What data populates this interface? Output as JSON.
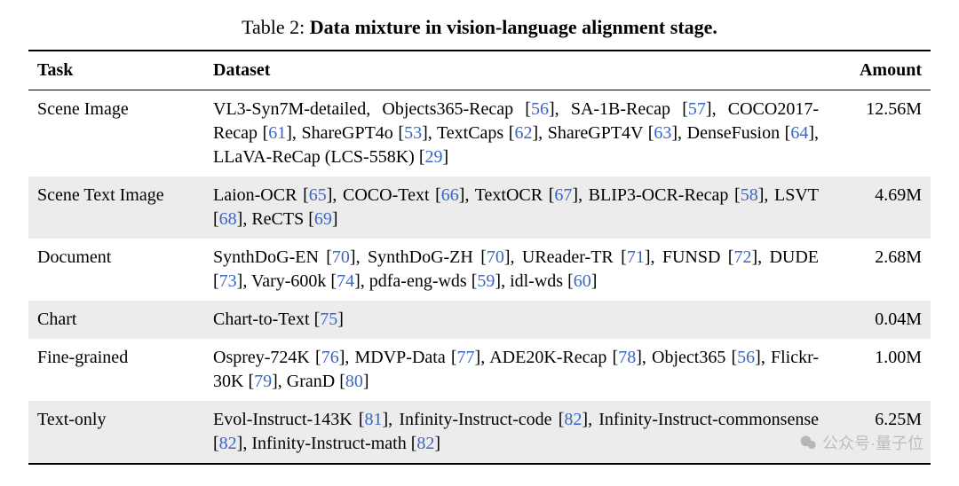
{
  "caption_prefix": "Table 2: ",
  "caption_title": "Data mixture in vision-language alignment stage.",
  "columns": [
    "Task",
    "Dataset",
    "Amount"
  ],
  "cite_color": "#3a66c4",
  "shade_color": "#ececec",
  "rows": [
    {
      "task": "Scene Image",
      "amount": "12.56M",
      "shaded": false,
      "segments": [
        {
          "t": "VL3-Syn7M-detailed, Objects365-Recap "
        },
        {
          "t": "[",
          "k": "br"
        },
        {
          "t": "56",
          "k": "cite"
        },
        {
          "t": "]",
          "k": "br"
        },
        {
          "t": ", SA-1B-Recap "
        },
        {
          "t": "[",
          "k": "br"
        },
        {
          "t": "57",
          "k": "cite"
        },
        {
          "t": "]",
          "k": "br"
        },
        {
          "t": ", COCO2017-Recap "
        },
        {
          "t": "[",
          "k": "br"
        },
        {
          "t": "61",
          "k": "cite"
        },
        {
          "t": "]",
          "k": "br"
        },
        {
          "t": ", ShareGPT4o "
        },
        {
          "t": "[",
          "k": "br"
        },
        {
          "t": "53",
          "k": "cite"
        },
        {
          "t": "]",
          "k": "br"
        },
        {
          "t": ", TextCaps "
        },
        {
          "t": "[",
          "k": "br"
        },
        {
          "t": "62",
          "k": "cite"
        },
        {
          "t": "]",
          "k": "br"
        },
        {
          "t": ", ShareGPT4V "
        },
        {
          "t": "[",
          "k": "br"
        },
        {
          "t": "63",
          "k": "cite"
        },
        {
          "t": "]",
          "k": "br"
        },
        {
          "t": ", DenseFusion "
        },
        {
          "t": "[",
          "k": "br"
        },
        {
          "t": "64",
          "k": "cite"
        },
        {
          "t": "]",
          "k": "br"
        },
        {
          "t": ", LLaVA-ReCap (LCS-558K) "
        },
        {
          "t": "[",
          "k": "br"
        },
        {
          "t": "29",
          "k": "cite"
        },
        {
          "t": "]",
          "k": "br"
        }
      ]
    },
    {
      "task": "Scene Text Image",
      "amount": "4.69M",
      "shaded": true,
      "segments": [
        {
          "t": "Laion-OCR "
        },
        {
          "t": "[",
          "k": "br"
        },
        {
          "t": "65",
          "k": "cite"
        },
        {
          "t": "]",
          "k": "br"
        },
        {
          "t": ", COCO-Text "
        },
        {
          "t": "[",
          "k": "br"
        },
        {
          "t": "66",
          "k": "cite"
        },
        {
          "t": "]",
          "k": "br"
        },
        {
          "t": ", TextOCR "
        },
        {
          "t": "[",
          "k": "br"
        },
        {
          "t": "67",
          "k": "cite"
        },
        {
          "t": "]",
          "k": "br"
        },
        {
          "t": ", BLIP3-OCR-Recap "
        },
        {
          "t": "[",
          "k": "br"
        },
        {
          "t": "58",
          "k": "cite"
        },
        {
          "t": "]",
          "k": "br"
        },
        {
          "t": ", LSVT "
        },
        {
          "t": "[",
          "k": "br"
        },
        {
          "t": "68",
          "k": "cite"
        },
        {
          "t": "]",
          "k": "br"
        },
        {
          "t": ", ReCTS "
        },
        {
          "t": "[",
          "k": "br"
        },
        {
          "t": "69",
          "k": "cite"
        },
        {
          "t": "]",
          "k": "br"
        }
      ]
    },
    {
      "task": "Document",
      "amount": "2.68M",
      "shaded": false,
      "segments": [
        {
          "t": "SynthDoG-EN "
        },
        {
          "t": "[",
          "k": "br"
        },
        {
          "t": "70",
          "k": "cite"
        },
        {
          "t": "]",
          "k": "br"
        },
        {
          "t": ", SynthDoG-ZH "
        },
        {
          "t": "[",
          "k": "br"
        },
        {
          "t": "70",
          "k": "cite"
        },
        {
          "t": "]",
          "k": "br"
        },
        {
          "t": ", UReader-TR "
        },
        {
          "t": "[",
          "k": "br"
        },
        {
          "t": "71",
          "k": "cite"
        },
        {
          "t": "]",
          "k": "br"
        },
        {
          "t": ", FUNSD "
        },
        {
          "t": "[",
          "k": "br"
        },
        {
          "t": "72",
          "k": "cite"
        },
        {
          "t": "]",
          "k": "br"
        },
        {
          "t": ", DUDE "
        },
        {
          "t": "[",
          "k": "br"
        },
        {
          "t": "73",
          "k": "cite"
        },
        {
          "t": "]",
          "k": "br"
        },
        {
          "t": ", Vary-600k "
        },
        {
          "t": "[",
          "k": "br"
        },
        {
          "t": "74",
          "k": "cite"
        },
        {
          "t": "]",
          "k": "br"
        },
        {
          "t": ", pdfa-eng-wds "
        },
        {
          "t": "[",
          "k": "br"
        },
        {
          "t": "59",
          "k": "cite"
        },
        {
          "t": "]",
          "k": "br"
        },
        {
          "t": ", idl-wds "
        },
        {
          "t": "[",
          "k": "br"
        },
        {
          "t": "60",
          "k": "cite"
        },
        {
          "t": "]",
          "k": "br"
        }
      ]
    },
    {
      "task": "Chart",
      "amount": "0.04M",
      "shaded": true,
      "segments": [
        {
          "t": "Chart-to-Text "
        },
        {
          "t": "[",
          "k": "br"
        },
        {
          "t": "75",
          "k": "cite"
        },
        {
          "t": "]",
          "k": "br"
        }
      ]
    },
    {
      "task": "Fine-grained",
      "amount": "1.00M",
      "shaded": false,
      "segments": [
        {
          "t": "Osprey-724K "
        },
        {
          "t": "[",
          "k": "br"
        },
        {
          "t": "76",
          "k": "cite"
        },
        {
          "t": "]",
          "k": "br"
        },
        {
          "t": ", MDVP-Data "
        },
        {
          "t": "[",
          "k": "br"
        },
        {
          "t": "77",
          "k": "cite"
        },
        {
          "t": "]",
          "k": "br"
        },
        {
          "t": ", ADE20K-Recap "
        },
        {
          "t": "[",
          "k": "br"
        },
        {
          "t": "78",
          "k": "cite"
        },
        {
          "t": "]",
          "k": "br"
        },
        {
          "t": ", Object365 "
        },
        {
          "t": "[",
          "k": "br"
        },
        {
          "t": "56",
          "k": "cite"
        },
        {
          "t": "]",
          "k": "br"
        },
        {
          "t": ", Flickr-30K "
        },
        {
          "t": "[",
          "k": "br"
        },
        {
          "t": "79",
          "k": "cite"
        },
        {
          "t": "]",
          "k": "br"
        },
        {
          "t": ", GranD "
        },
        {
          "t": "[",
          "k": "br"
        },
        {
          "t": "80",
          "k": "cite"
        },
        {
          "t": "]",
          "k": "br"
        }
      ]
    },
    {
      "task": "Text-only",
      "amount": "6.25M",
      "shaded": true,
      "segments": [
        {
          "t": "Evol-Instruct-143K "
        },
        {
          "t": "[",
          "k": "br"
        },
        {
          "t": "81",
          "k": "cite"
        },
        {
          "t": "]",
          "k": "br"
        },
        {
          "t": ", Infinity-Instruct-code "
        },
        {
          "t": "[",
          "k": "br"
        },
        {
          "t": "82",
          "k": "cite"
        },
        {
          "t": "]",
          "k": "br"
        },
        {
          "t": ", Infinity-Instruct-commonsense "
        },
        {
          "t": "[",
          "k": "br"
        },
        {
          "t": "82",
          "k": "cite"
        },
        {
          "t": "]",
          "k": "br"
        },
        {
          "t": ", Infinity-Instruct-math "
        },
        {
          "t": "[",
          "k": "br"
        },
        {
          "t": "82",
          "k": "cite"
        },
        {
          "t": "]",
          "k": "br"
        }
      ]
    }
  ],
  "watermark_text": "公众号·量子位"
}
